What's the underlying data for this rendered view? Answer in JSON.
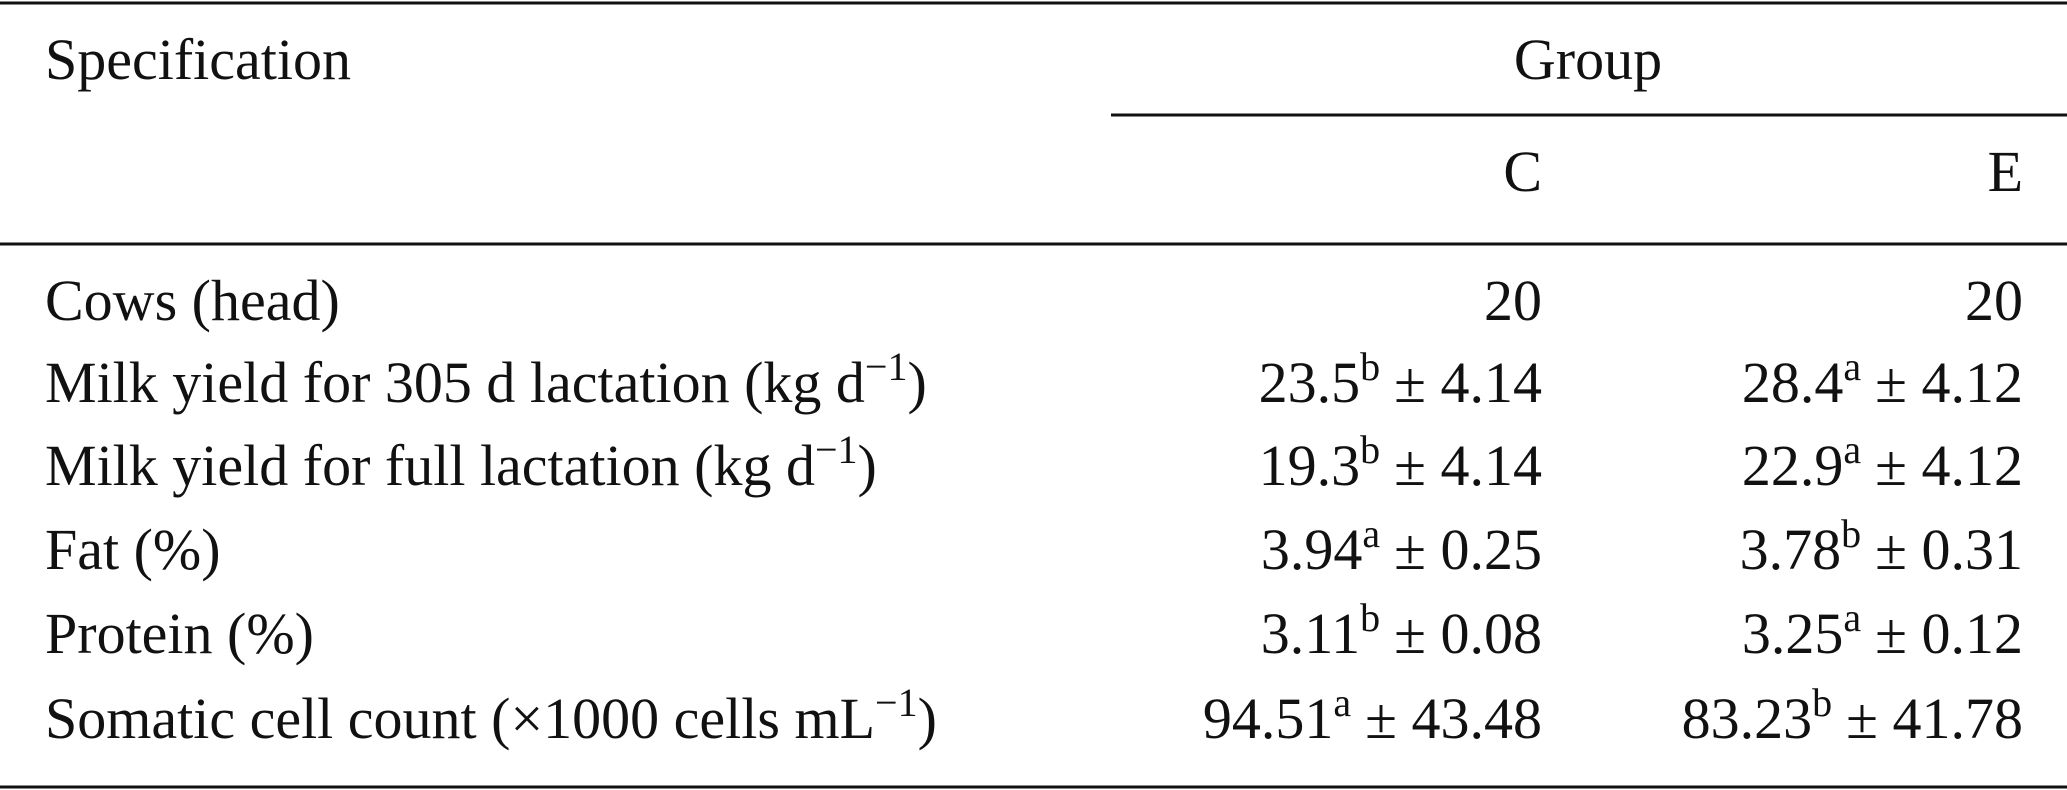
{
  "header": {
    "specification": "Specification",
    "group": "Group",
    "columns": [
      "C",
      "E"
    ]
  },
  "rows": [
    {
      "label": {
        "text": "Cows (head)"
      },
      "cells": [
        {
          "value": "20"
        },
        {
          "value": "20"
        }
      ]
    },
    {
      "label": {
        "text": "Milk yield for 305 d lactation (kg d",
        "sup": "−1",
        "after": ")"
      },
      "cells": [
        {
          "value": "23.5",
          "sup": "b",
          "sd": "± 4.14"
        },
        {
          "value": "28.4",
          "sup": "a",
          "sd": "± 4.12"
        }
      ]
    },
    {
      "label": {
        "text": "Milk yield for full lactation (kg d",
        "sup": "−1",
        "after": ")"
      },
      "cells": [
        {
          "value": "19.3",
          "sup": "b",
          "sd": "± 4.14"
        },
        {
          "value": "22.9",
          "sup": "a",
          "sd": "± 4.12"
        }
      ]
    },
    {
      "label": {
        "text": "Fat (%)"
      },
      "cells": [
        {
          "value": "3.94",
          "sup": "a",
          "sd": "± 0.25"
        },
        {
          "value": "3.78",
          "sup": "b",
          "sd": "± 0.31"
        }
      ]
    },
    {
      "label": {
        "text": "Protein (%)"
      },
      "cells": [
        {
          "value": "3.11",
          "sup": "b",
          "sd": "± 0.08"
        },
        {
          "value": "3.25",
          "sup": "a",
          "sd": "± 0.12"
        }
      ]
    },
    {
      "label": {
        "text": "Somatic cell count (×1000 cells mL",
        "sup": "−1",
        "after": ")"
      },
      "cells": [
        {
          "value": "94.51",
          "sup": "a",
          "sd": "± 43.48"
        },
        {
          "value": "83.23",
          "sup": "b",
          "sd": "± 41.78"
        }
      ]
    }
  ]
}
